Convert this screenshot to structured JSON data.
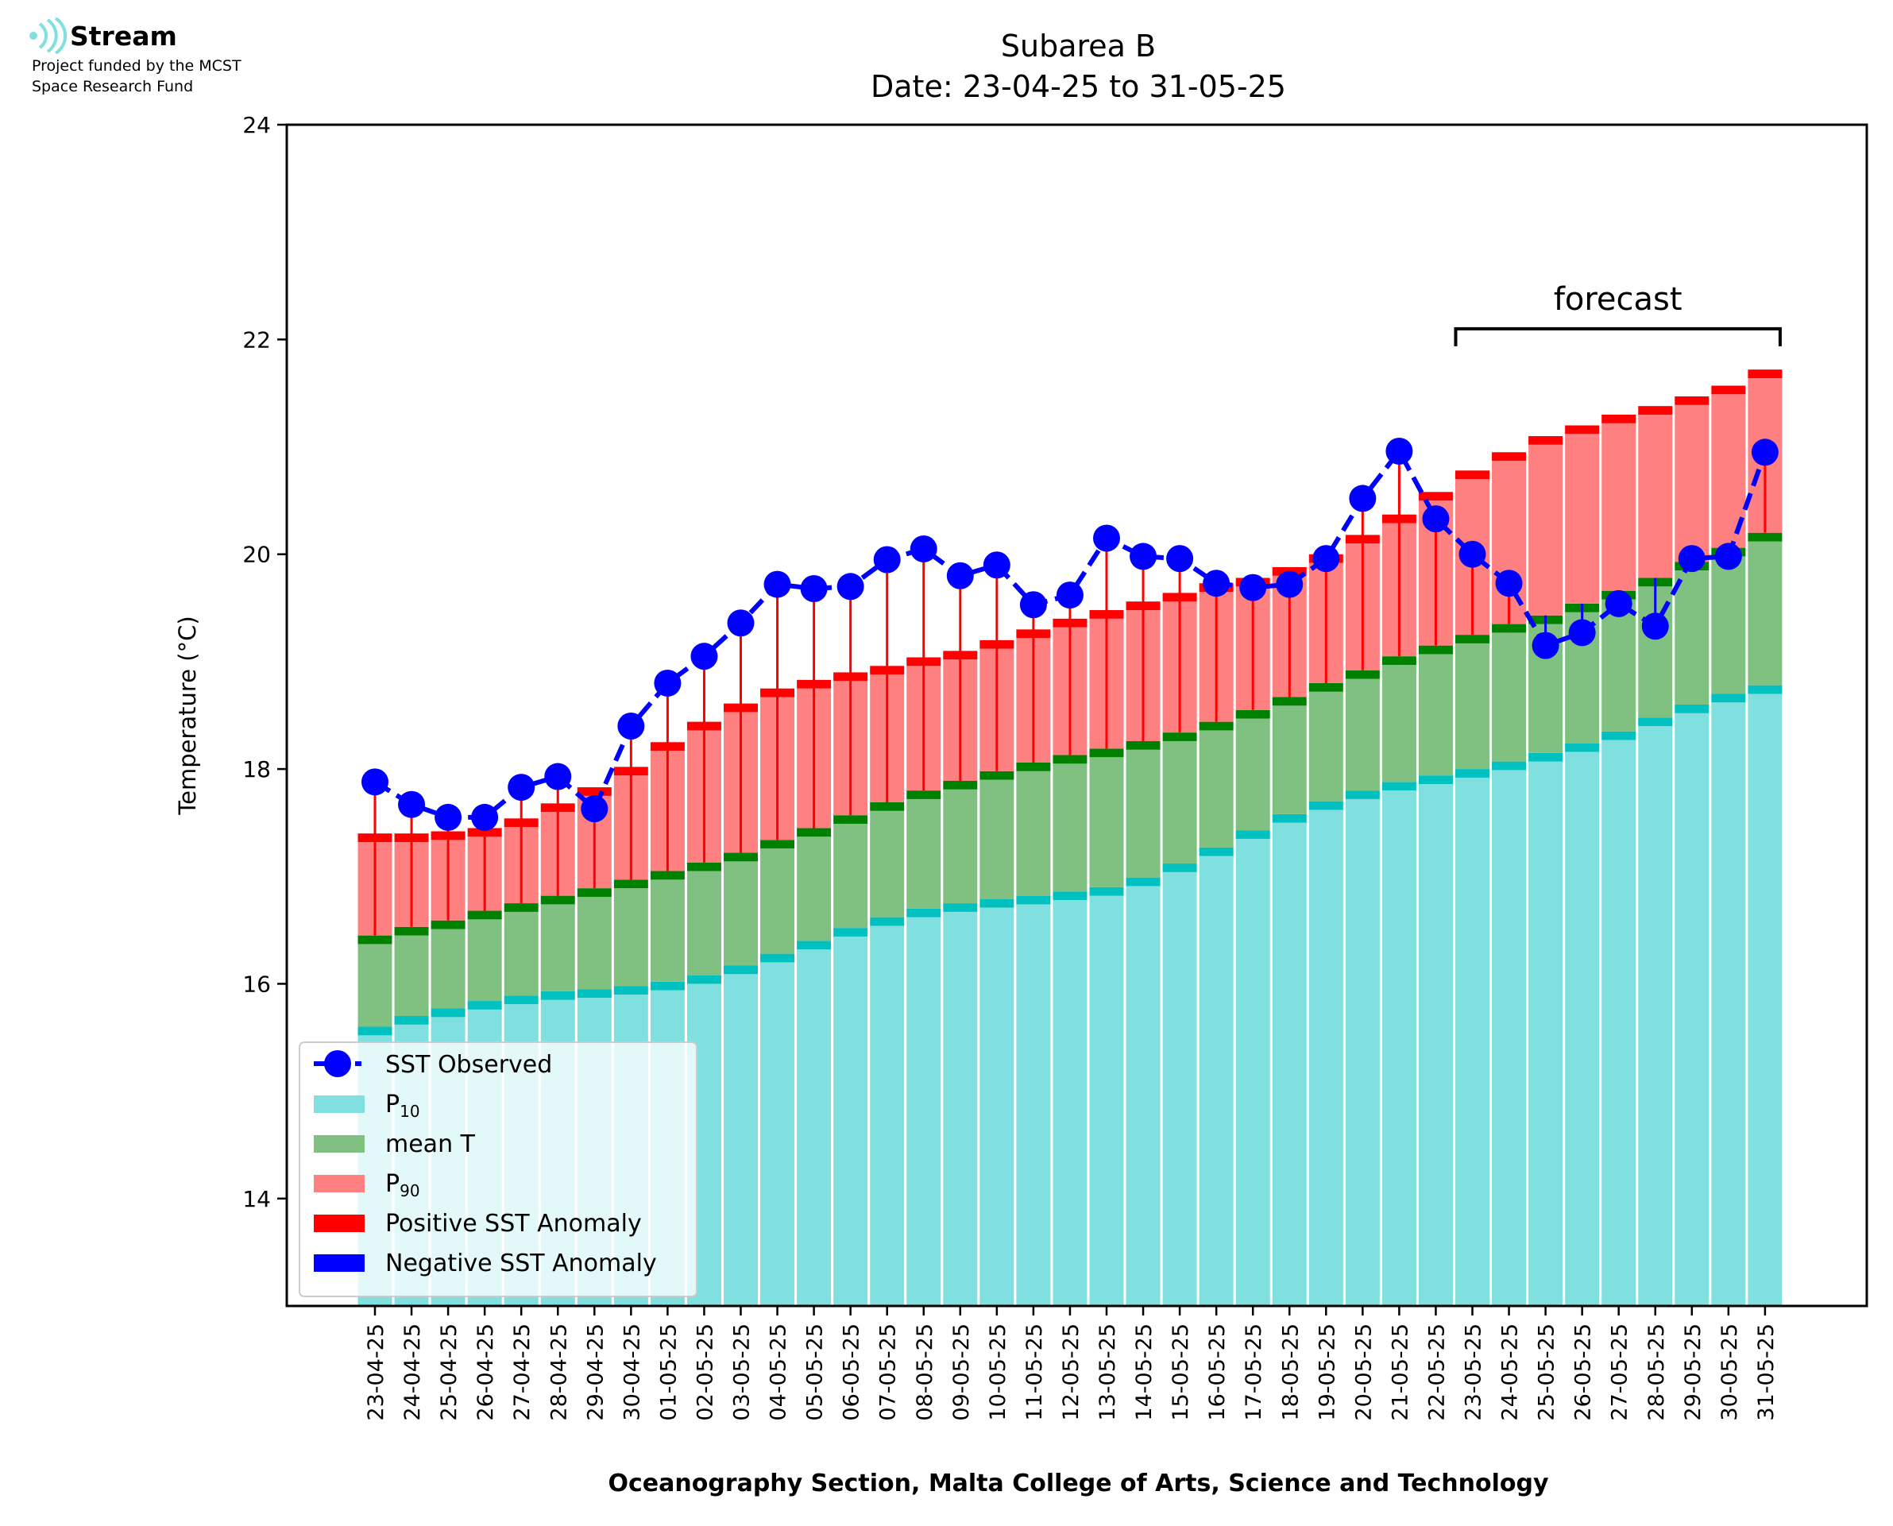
{
  "logo": {
    "name": "Stream",
    "line1": "Project funded by the MCST",
    "line2": "Space Research Fund"
  },
  "annotation": {
    "forecast": "forecast"
  },
  "colors": {
    "p10": "#80DFDF",
    "p10_cap": "#00C0C0",
    "mean": "#80C080",
    "mean_cap": "#008000",
    "p90": "#FF8080",
    "p90_cap": "#FF0000",
    "positive_anomaly": "#FF0000",
    "negative_anomaly": "#0000FF",
    "observed": "#0000FF"
  },
  "chart_data": {
    "type": "bar",
    "title": "Subarea B",
    "subtitle": "Date: 23-04-25 to 31-05-25",
    "xlabel": "Oceanography Section, Malta College of Arts, Science and Technology",
    "ylabel": "Temperature (°C)",
    "ylim": [
      13,
      24
    ],
    "yticks": [
      "14",
      "16",
      "18",
      "20",
      "22",
      "24"
    ],
    "grid": false,
    "legend_position": "lower-left",
    "forecast_range": [
      "23-05-25",
      "31-05-25"
    ],
    "categories": [
      "23-04-25",
      "24-04-25",
      "25-04-25",
      "26-04-25",
      "27-04-25",
      "28-04-25",
      "29-04-25",
      "30-04-25",
      "01-05-25",
      "02-05-25",
      "03-05-25",
      "04-05-25",
      "05-05-25",
      "06-05-25",
      "07-05-25",
      "08-05-25",
      "09-05-25",
      "10-05-25",
      "11-05-25",
      "12-05-25",
      "13-05-25",
      "14-05-25",
      "15-05-25",
      "16-05-25",
      "17-05-25",
      "18-05-25",
      "19-05-25",
      "20-05-25",
      "21-05-25",
      "22-05-25",
      "23-05-25",
      "24-05-25",
      "25-05-25",
      "26-05-25",
      "27-05-25",
      "28-05-25",
      "29-05-25",
      "30-05-25",
      "31-05-25"
    ],
    "series": [
      {
        "name": "P",
        "sub": "10",
        "values": [
          15.6,
          15.7,
          15.77,
          15.84,
          15.89,
          15.93,
          15.95,
          15.98,
          16.02,
          16.08,
          16.17,
          16.28,
          16.4,
          16.52,
          16.62,
          16.7,
          16.75,
          16.79,
          16.82,
          16.86,
          16.9,
          16.99,
          17.12,
          17.27,
          17.43,
          17.58,
          17.7,
          17.8,
          17.88,
          17.94,
          18.0,
          18.07,
          18.15,
          18.24,
          18.35,
          18.48,
          18.6,
          18.7,
          18.78
        ]
      },
      {
        "name": "mean T",
        "values": [
          16.45,
          16.53,
          16.59,
          16.68,
          16.75,
          16.82,
          16.89,
          16.97,
          17.05,
          17.13,
          17.22,
          17.34,
          17.45,
          17.57,
          17.69,
          17.8,
          17.89,
          17.98,
          18.06,
          18.13,
          18.19,
          18.26,
          18.34,
          18.44,
          18.55,
          18.67,
          18.8,
          18.92,
          19.05,
          19.15,
          19.25,
          19.35,
          19.43,
          19.54,
          19.66,
          19.78,
          19.93,
          20.06,
          20.2
        ]
      },
      {
        "name": "P",
        "sub": "90",
        "values": [
          17.4,
          17.4,
          17.42,
          17.45,
          17.54,
          17.68,
          17.83,
          18.02,
          18.25,
          18.44,
          18.61,
          18.75,
          18.83,
          18.9,
          18.96,
          19.04,
          19.1,
          19.2,
          19.3,
          19.4,
          19.48,
          19.56,
          19.64,
          19.73,
          19.78,
          19.88,
          20.0,
          20.18,
          20.37,
          20.58,
          20.78,
          20.95,
          21.1,
          21.2,
          21.3,
          21.38,
          21.47,
          21.57,
          21.72
        ]
      },
      {
        "name": "SST Observed",
        "values": [
          17.88,
          17.67,
          17.55,
          17.55,
          17.83,
          17.93,
          17.63,
          18.4,
          18.8,
          19.05,
          19.36,
          19.72,
          19.68,
          19.7,
          19.95,
          20.05,
          19.8,
          19.9,
          19.53,
          19.62,
          20.15,
          19.98,
          19.96,
          19.73,
          19.69,
          19.72,
          19.96,
          20.52,
          20.96,
          20.33,
          20.0,
          19.73,
          19.15,
          19.27,
          19.54,
          19.33,
          19.96,
          19.98,
          20.95
        ]
      }
    ],
    "legend": [
      {
        "label": "SST Observed"
      },
      {
        "label": "P",
        "sub": "10"
      },
      {
        "label": "mean T"
      },
      {
        "label": "P",
        "sub": "90"
      },
      {
        "label": "Positive SST Anomaly"
      },
      {
        "label": "Negative SST Anomaly"
      }
    ]
  }
}
